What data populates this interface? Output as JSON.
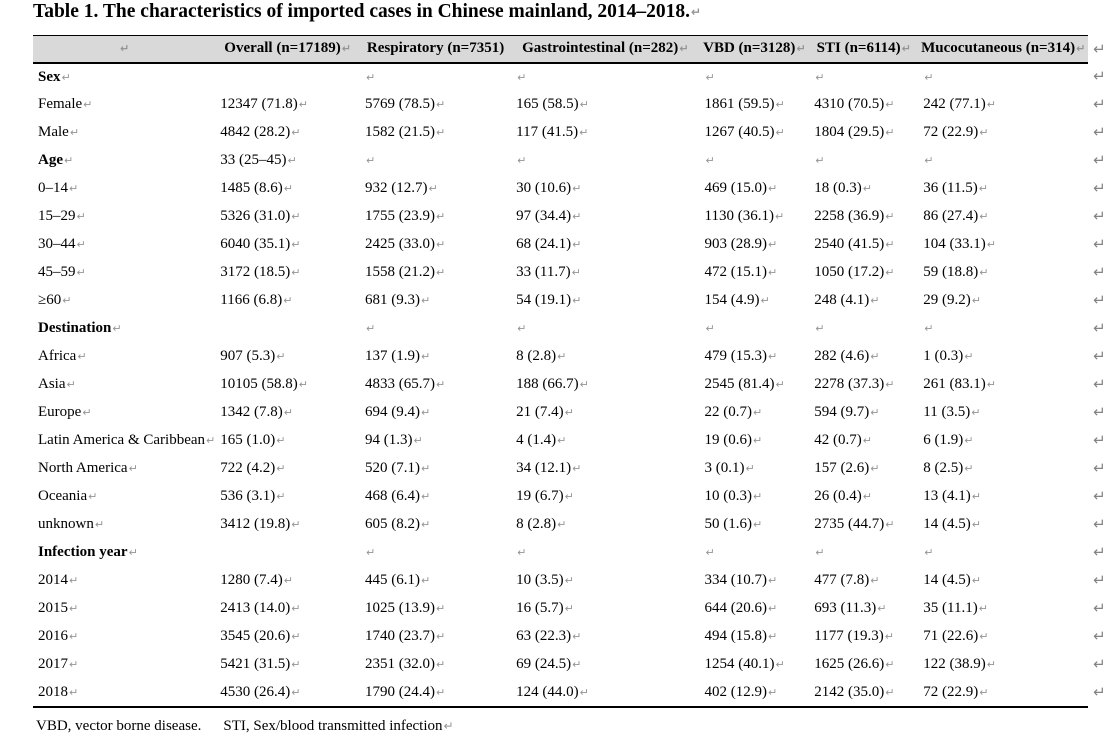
{
  "document": {
    "title": "Table 1. The characteristics of imported cases in Chinese mainland, 2014–2018.",
    "formatting_mark_glyph": "↵",
    "colors": {
      "header_background": "#d9d9d9",
      "border": "#000000",
      "formatting_mark": "#8f8f8f",
      "text": "#000000",
      "page_background": "#ffffff"
    }
  },
  "table": {
    "column_headers": [
      {
        "label": "",
        "end_mark": true
      },
      {
        "label": "Overall (n=17189)",
        "end_mark": true
      },
      {
        "label": "Respiratory (n=7351)",
        "end_mark": false
      },
      {
        "label": "Gastrointestinal (n=282)",
        "end_mark": true
      },
      {
        "label": "VBD (n=3128)",
        "end_mark": true
      },
      {
        "label": "STI (n=6114)",
        "end_mark": true
      },
      {
        "label": "Mucocutaneous (n=314)",
        "end_mark": true
      }
    ],
    "rows": [
      {
        "label": "Sex",
        "section": true,
        "cells": [
          null,
          "",
          "",
          "",
          "",
          ""
        ]
      },
      {
        "label": "Female",
        "section": false,
        "cells": [
          "12347 (71.8)",
          "5769 (78.5)",
          "165 (58.5)",
          "1861 (59.5)",
          "4310 (70.5)",
          "242 (77.1)"
        ]
      },
      {
        "label": "Male",
        "section": false,
        "cells": [
          "4842 (28.2)",
          "1582 (21.5)",
          "117 (41.5)",
          "1267 (40.5)",
          "1804 (29.5)",
          "72 (22.9)"
        ]
      },
      {
        "label": "Age",
        "section": true,
        "cells": [
          "33 (25–45)",
          "",
          "",
          "",
          "",
          ""
        ]
      },
      {
        "label": "0–14",
        "section": false,
        "cells": [
          "1485 (8.6)",
          "932 (12.7)",
          "30 (10.6)",
          "469 (15.0)",
          "18 (0.3)",
          "36 (11.5)"
        ]
      },
      {
        "label": "15–29",
        "section": false,
        "cells": [
          "5326 (31.0)",
          "1755 (23.9)",
          "97 (34.4)",
          "1130 (36.1)",
          "2258 (36.9)",
          "86 (27.4)"
        ]
      },
      {
        "label": "30–44",
        "section": false,
        "cells": [
          "6040 (35.1)",
          "2425 (33.0)",
          "68 (24.1)",
          "903 (28.9)",
          "2540 (41.5)",
          "104 (33.1)"
        ]
      },
      {
        "label": "45–59",
        "section": false,
        "cells": [
          "3172 (18.5)",
          "1558 (21.2)",
          "33 (11.7)",
          "472 (15.1)",
          "1050 (17.2)",
          "59 (18.8)"
        ]
      },
      {
        "label": "≥60",
        "section": false,
        "cells": [
          "1166 (6.8)",
          "681 (9.3)",
          "54 (19.1)",
          "154 (4.9)",
          "248 (4.1)",
          "29 (9.2)"
        ]
      },
      {
        "label": "Destination",
        "section": true,
        "cells": [
          null,
          "",
          "",
          "",
          "",
          ""
        ]
      },
      {
        "label": "Africa",
        "section": false,
        "cells": [
          "907 (5.3)",
          "137 (1.9)",
          "8 (2.8)",
          "479 (15.3)",
          "282 (4.6)",
          "1 (0.3)"
        ]
      },
      {
        "label": "Asia",
        "section": false,
        "cells": [
          "10105 (58.8)",
          "4833 (65.7)",
          "188 (66.7)",
          "2545 (81.4)",
          "2278 (37.3)",
          "261 (83.1)"
        ]
      },
      {
        "label": "Europe",
        "section": false,
        "cells": [
          "1342 (7.8)",
          "694 (9.4)",
          "21 (7.4)",
          "22 (0.7)",
          "594 (9.7)",
          "11 (3.5)"
        ]
      },
      {
        "label": "Latin America & Caribbean",
        "section": false,
        "cells": [
          "165 (1.0)",
          "94 (1.3)",
          "4 (1.4)",
          "19 (0.6)",
          "42 (0.7)",
          "6 (1.9)"
        ]
      },
      {
        "label": "North America",
        "section": false,
        "cells": [
          "722 (4.2)",
          "520 (7.1)",
          "34 (12.1)",
          "3 (0.1)",
          "157 (2.6)",
          "8 (2.5)"
        ]
      },
      {
        "label": "Oceania",
        "section": false,
        "cells": [
          "536 (3.1)",
          "468 (6.4)",
          "19 (6.7)",
          "10 (0.3)",
          "26 (0.4)",
          "13 (4.1)"
        ]
      },
      {
        "label": "unknown",
        "section": false,
        "cells": [
          "3412 (19.8)",
          "605 (8.2)",
          "8 (2.8)",
          "50 (1.6)",
          "2735 (44.7)",
          "14 (4.5)"
        ]
      },
      {
        "label": "Infection year",
        "section": true,
        "cells": [
          null,
          "",
          "",
          "",
          "",
          ""
        ]
      },
      {
        "label": "2014",
        "section": false,
        "cells": [
          "1280 (7.4)",
          "445 (6.1)",
          "10 (3.5)",
          "334 (10.7)",
          "477 (7.8)",
          "14 (4.5)"
        ]
      },
      {
        "label": "2015",
        "section": false,
        "cells": [
          "2413 (14.0)",
          "1025 (13.9)",
          "16 (5.7)",
          "644 (20.6)",
          "693 (11.3)",
          "35 (11.1)"
        ]
      },
      {
        "label": "2016",
        "section": false,
        "cells": [
          "3545 (20.6)",
          "1740 (23.7)",
          "63 (22.3)",
          "494 (15.8)",
          "1177 (19.3)",
          "71 (22.6)"
        ]
      },
      {
        "label": "2017",
        "section": false,
        "cells": [
          "5421 (31.5)",
          "2351 (32.0)",
          "69 (24.5)",
          "1254 (40.1)",
          "1625 (26.6)",
          "122 (38.9)"
        ]
      },
      {
        "label": "2018",
        "section": false,
        "cells": [
          "4530 (26.4)",
          "1790 (24.4)",
          "124 (44.0)",
          "402 (12.9)",
          "2142 (35.0)",
          "72 (22.9)"
        ]
      }
    ]
  },
  "footnote": {
    "part1": "VBD, vector borne disease.",
    "part2": "STI, Sex/blood transmitted infection"
  }
}
